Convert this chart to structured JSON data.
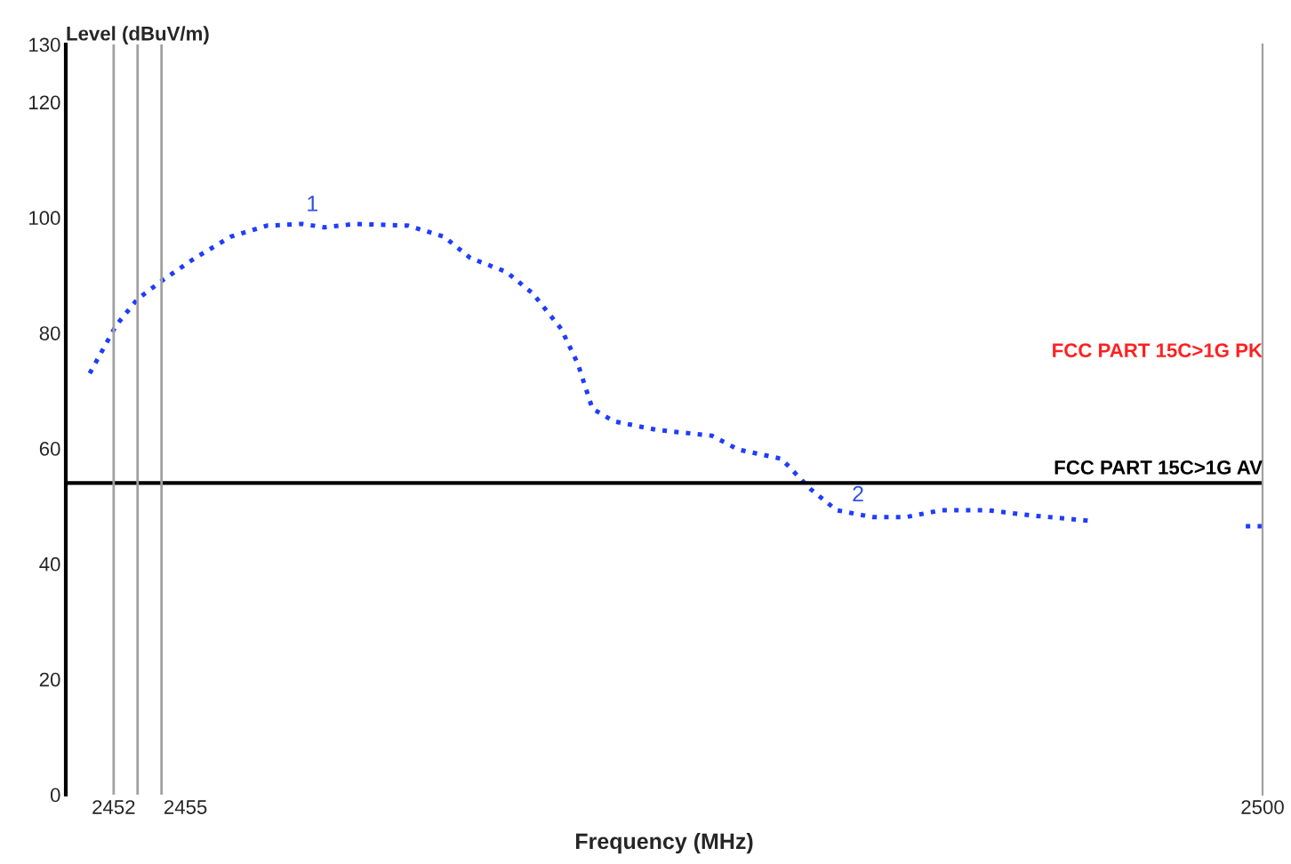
{
  "chart_data": {
    "type": "line",
    "xlabel": "Frequency (MHz)",
    "ylabel": "Level (dBuV/m)",
    "xlim": [
      2450,
      2500
    ],
    "xticks": [
      2452,
      2455,
      2500
    ],
    "ylim": [
      0,
      130
    ],
    "yticks": [
      0,
      20,
      40,
      60,
      80,
      100,
      120,
      130
    ],
    "grid": false,
    "line_style": "dotted",
    "marker": "none",
    "series": [
      {
        "color": "#1f3cff",
        "x": [
          2451.0,
          2452.1,
          2453.0,
          2454.1,
          2455.4,
          2456.9,
          2458.4,
          2459.9,
          2460.8,
          2462.1,
          2464.3,
          2465.8,
          2466.9,
          2468.4,
          2469.5,
          2470.7,
          2471.4,
          2472.0,
          2472.9,
          2474.7,
          2477.0,
          2478.1,
          2479.9,
          2481.1,
          2482.2,
          2483.7,
          2485.1,
          2486.6,
          2488.5,
          2490.3,
          2492.9,
          2496.0,
          2499.3,
          2500
        ],
        "values": [
          73.0,
          81.3,
          85.9,
          89.3,
          93.0,
          96.7,
          98.6,
          98.9,
          98.3,
          98.9,
          98.6,
          96.7,
          93.0,
          90.6,
          86.9,
          80.7,
          74.6,
          66.9,
          64.7,
          63.2,
          62.2,
          59.8,
          58.2,
          53.0,
          49.3,
          48.1,
          48.1,
          49.3,
          49.3,
          48.4,
          47.4,
          null,
          46.5,
          46.5
        ]
      }
    ],
    "ref_lines": [
      {
        "axis": "y",
        "value": 54,
        "label": "FCC PART 15C>1G AV",
        "color": "#000000"
      },
      {
        "axis": "x",
        "value": 2452,
        "color": "#a0a0a0"
      },
      {
        "axis": "x",
        "value": 2453,
        "color": "#a0a0a0"
      },
      {
        "axis": "x",
        "value": 2454,
        "color": "#a0a0a0"
      }
    ],
    "annotations": [
      "FCC PART 15C>1G PK",
      {
        "text": "1",
        "x": 2460.3,
        "y": 98.6
      },
      {
        "text": "2",
        "x": 2483.1,
        "y": 48.3
      }
    ]
  }
}
